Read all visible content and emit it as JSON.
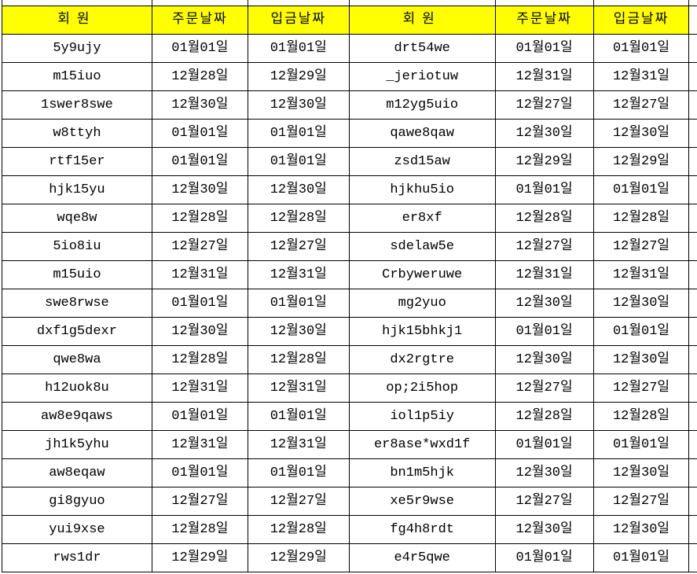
{
  "table": {
    "header": [
      "회원",
      "주문날짜",
      "입금날짜",
      "회원",
      "주문날짜",
      "입금날짜"
    ],
    "rows": [
      [
        "5y9ujy",
        "01월01일",
        "01월01일",
        "drt54we",
        "01월01일",
        "01월01일"
      ],
      [
        "m15iuo",
        "12월28일",
        "12월29일",
        "_jeriotuw",
        "12월31일",
        "12월31일"
      ],
      [
        "1swer8swe",
        "12월30일",
        "12월30일",
        "m12yg5uio",
        "12월27일",
        "12월27일"
      ],
      [
        "w8ttyh",
        "01월01일",
        "01월01일",
        "qawe8qaw",
        "12월30일",
        "12월30일"
      ],
      [
        "rtf15er",
        "01월01일",
        "01월01일",
        "zsd15aw",
        "12월29일",
        "12월29일"
      ],
      [
        "hjk15yu",
        "12월30일",
        "12월30일",
        "hjkhu5io",
        "01월01일",
        "01월01일"
      ],
      [
        "wqe8w",
        "12월28일",
        "12월28일",
        "er8xf",
        "12월28일",
        "12월28일"
      ],
      [
        "5io8iu",
        "12월27일",
        "12월27일",
        "sdelaw5e",
        "12월27일",
        "12월27일"
      ],
      [
        "m15uio",
        "12월31일",
        "12월31일",
        "Crbyweruwe",
        "12월31일",
        "12월31일"
      ],
      [
        "swe8rwse",
        "01월01일",
        "01월01일",
        "mg2yuo",
        "12월30일",
        "12월30일"
      ],
      [
        "dxf1g5dexr",
        "12월30일",
        "12월30일",
        "hjk15bhkj1",
        "01월01일",
        "01월01일"
      ],
      [
        "qwe8wa",
        "12월28일",
        "12월28일",
        "dx2rgtre",
        "12월30일",
        "12월30일"
      ],
      [
        "h12uok8u",
        "12월31일",
        "12월31일",
        "op;2i5hop",
        "12월27일",
        "12월27일"
      ],
      [
        "aw8e9qaws",
        "01월01일",
        "01월01일",
        "iol1p5iy",
        "12월28일",
        "12월28일"
      ],
      [
        "jh1k5yhu",
        "12월31일",
        "12월31일",
        "er8ase*wxd1f",
        "01월01일",
        "01월01일"
      ],
      [
        "aw8eqaw",
        "01월01일",
        "01월01일",
        "bn1m5hjk",
        "12월30일",
        "12월30일"
      ],
      [
        "gi8gyuo",
        "12월27일",
        "12월27일",
        "xe5r9wse",
        "12월27일",
        "12월27일"
      ],
      [
        "yui9xse",
        "12월28일",
        "12월28일",
        "fg4h8rdt",
        "12월30일",
        "12월30일"
      ],
      [
        "rws1dr",
        "12월29일",
        "12월29일",
        "e4r5qwe",
        "01월01일",
        "01월01일"
      ]
    ],
    "colors": {
      "header_bg": "#FFFF00",
      "border": "#000000",
      "text": "#000000",
      "cell_bg": "#FFFFFF"
    }
  }
}
